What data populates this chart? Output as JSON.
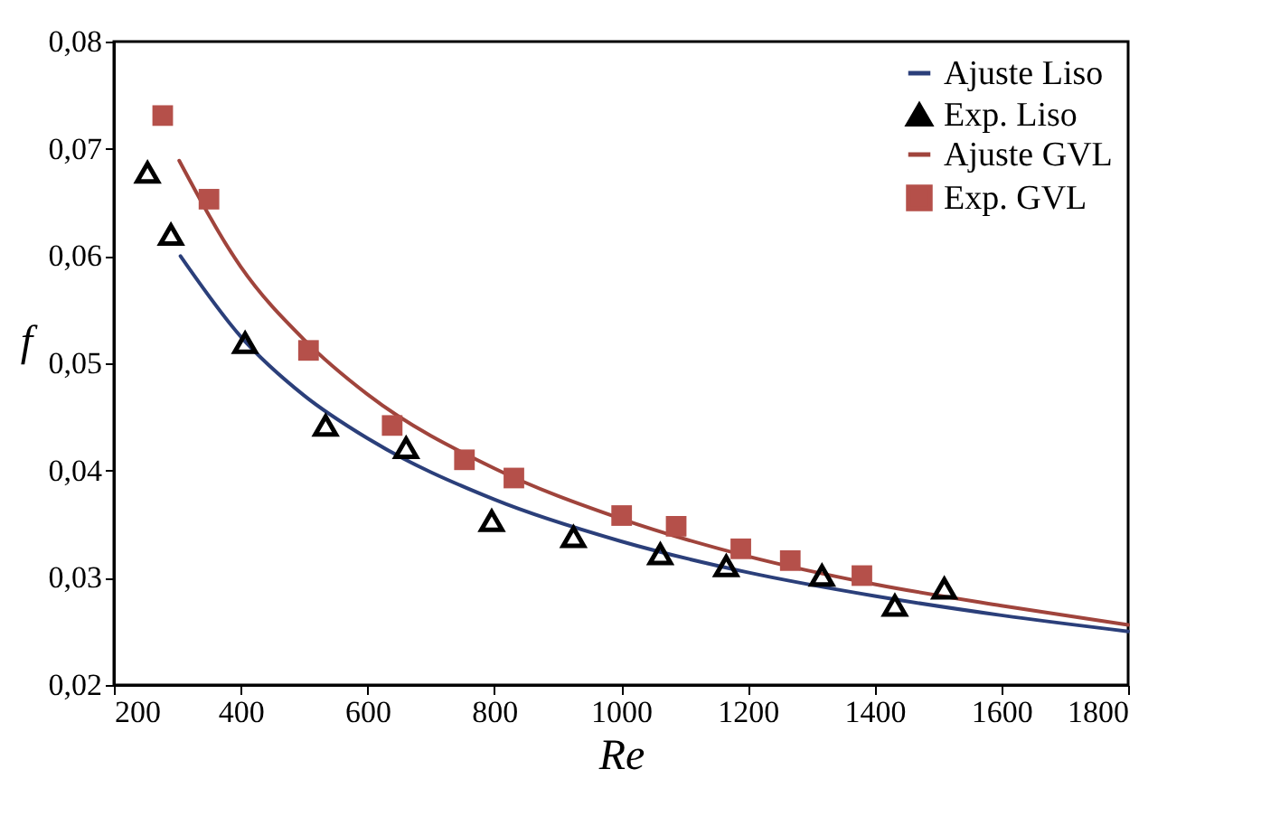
{
  "chart_data": {
    "type": "scatter",
    "xlabel": "Re",
    "ylabel": "f",
    "xlim": [
      200,
      1800
    ],
    "ylim": [
      0.02,
      0.08
    ],
    "xticks": [
      200,
      400,
      600,
      800,
      1000,
      1200,
      1400,
      1600,
      1800
    ],
    "yticks": [
      {
        "value": 0.02,
        "label": "0,02"
      },
      {
        "value": 0.03,
        "label": "0,03"
      },
      {
        "value": 0.04,
        "label": "0,04"
      },
      {
        "value": 0.05,
        "label": "0,05"
      },
      {
        "value": 0.06,
        "label": "0,06"
      },
      {
        "value": 0.07,
        "label": "0,07"
      },
      {
        "value": 0.08,
        "label": "0,08"
      }
    ],
    "grid": false,
    "legend": "top right",
    "series": [
      {
        "name": "Ajuste Liso",
        "type": "line",
        "marker": "none",
        "color": "#2b3f7a",
        "x": [
          305,
          400,
          500,
          600,
          800,
          1000,
          1200,
          1400,
          1600,
          1800
        ],
        "values": [
          0.06,
          0.0525,
          0.047,
          0.043,
          0.0373,
          0.0334,
          0.0305,
          0.0283,
          0.0265,
          0.025
        ]
      },
      {
        "name": "Exp. Liso",
        "type": "scatter",
        "marker": "triangle",
        "color": "#000000",
        "x": [
          253,
          290,
          407,
          534,
          661,
          796,
          925,
          1062,
          1166,
          1317,
          1432,
          1510
        ],
        "values": [
          0.0678,
          0.062,
          0.0519,
          0.0442,
          0.0421,
          0.0353,
          0.0338,
          0.0322,
          0.0311,
          0.0302,
          0.0274,
          0.029
        ]
      },
      {
        "name": "Ajuste GVL",
        "type": "line",
        "marker": "none",
        "color": "#a0443c",
        "x": [
          303,
          400,
          500,
          600,
          800,
          1000,
          1200,
          1400,
          1600,
          1800
        ],
        "values": [
          0.0689,
          0.059,
          0.0522,
          0.0471,
          0.0402,
          0.0355,
          0.032,
          0.0294,
          0.0274,
          0.0256
        ]
      },
      {
        "name": "Exp. GVL",
        "type": "scatter",
        "marker": "square",
        "color": "#b5504a",
        "x": [
          277,
          350,
          507,
          639,
          753,
          831,
          1001,
          1087,
          1189,
          1267,
          1380
        ],
        "values": [
          0.0731,
          0.0653,
          0.0512,
          0.0442,
          0.041,
          0.0393,
          0.0358,
          0.0348,
          0.0327,
          0.0316,
          0.0302
        ]
      }
    ]
  }
}
